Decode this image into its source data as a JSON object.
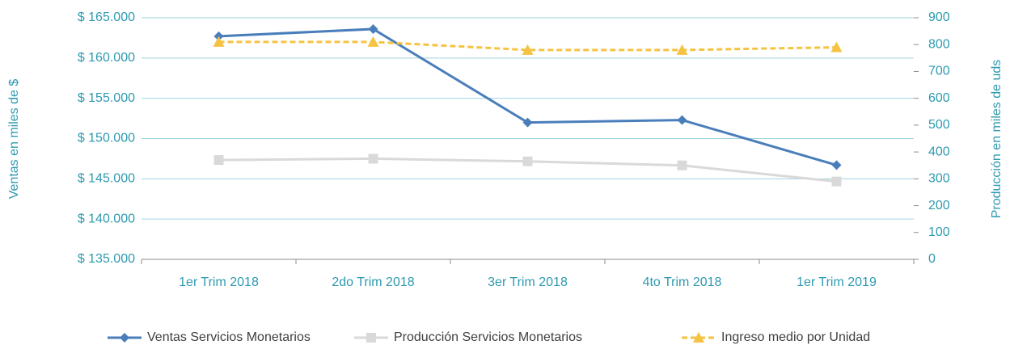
{
  "chart_data": {
    "type": "line",
    "categories": [
      "1er Trim 2018",
      "2do Trim 2018",
      "3er Trim 2018",
      "4to Trim 2018",
      "1er Trim 2019"
    ],
    "series": [
      {
        "name": "Ventas Servicios Monetarios",
        "color": "#4a7ebb",
        "marker": "diamond",
        "values": [
          162700,
          163600,
          152000,
          152300,
          146700
        ]
      },
      {
        "name": "Producción Servicios Monetarios",
        "color": "#d9d9d9",
        "marker": "square",
        "axis": "y2",
        "values": [
          370,
          375,
          365,
          350,
          290
        ]
      },
      {
        "name": "Ingreso medio por Unidad",
        "color": "#f5c342",
        "marker": "triangle",
        "dashed": true,
        "axis": "y2",
        "values": [
          810,
          810,
          780,
          780,
          790
        ]
      }
    ],
    "ylabel": "Ventas en miles de $",
    "y2label": "Producción en miles de uds",
    "ylim": [
      135000,
      165000
    ],
    "yticks": [
      {
        "value": 135000,
        "label": "$ 135.000"
      },
      {
        "value": 140000,
        "label": "$ 140.000"
      },
      {
        "value": 145000,
        "label": "$ 145.000"
      },
      {
        "value": 150000,
        "label": "$ 150.000"
      },
      {
        "value": 155000,
        "label": "$ 155.000"
      },
      {
        "value": 160000,
        "label": "$ 160.000"
      },
      {
        "value": 165000,
        "label": "$ 165.000"
      }
    ],
    "y2lim": [
      0,
      900
    ],
    "y2ticks": [
      0,
      100,
      200,
      300,
      400,
      500,
      600,
      700,
      800,
      900
    ],
    "grid": true,
    "legend": "bottom"
  }
}
